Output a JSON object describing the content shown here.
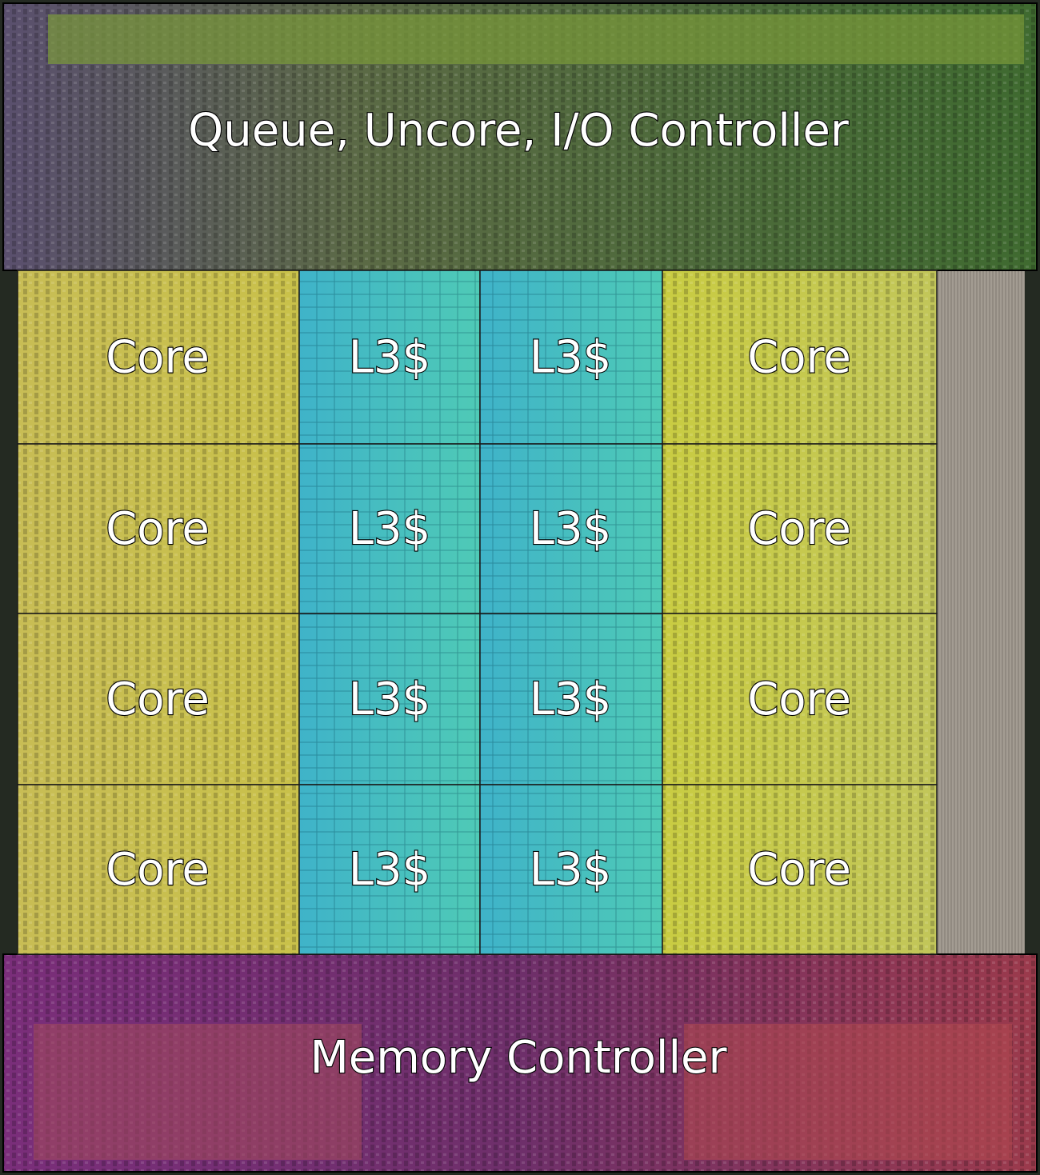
{
  "top": {
    "label": "Queue, Uncore, I/O Controller"
  },
  "rows": [
    [
      "Core",
      "L3$",
      "L3$",
      "Core"
    ],
    [
      "Core",
      "L3$",
      "L3$",
      "Core"
    ],
    [
      "Core",
      "L3$",
      "L3$",
      "Core"
    ],
    [
      "Core",
      "L3$",
      "L3$",
      "Core"
    ]
  ],
  "bottom": {
    "label": "Memory Controller"
  }
}
